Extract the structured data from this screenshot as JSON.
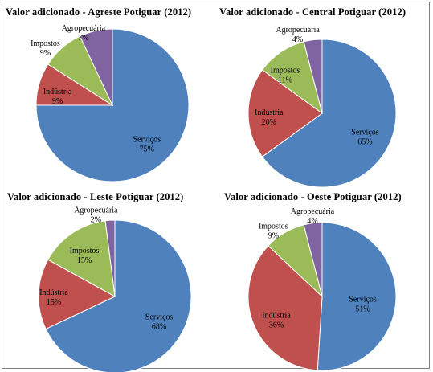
{
  "chart_data": [
    {
      "type": "pie",
      "title": "Valor adicionado  - Agreste Potiguar (2012)",
      "slices": [
        {
          "label": "Serviços",
          "value": 75,
          "pct_label": "75%",
          "color": "#4f81bd"
        },
        {
          "label": "Indústria",
          "value": 9,
          "pct_label": "9%",
          "color": "#c0504d"
        },
        {
          "label": "Impostos",
          "value": 9,
          "pct_label": "9%",
          "color": "#9bbb59"
        },
        {
          "label": "Agropecuária",
          "value": 7,
          "pct_label": "7%",
          "color": "#8064a2"
        }
      ]
    },
    {
      "type": "pie",
      "title": "Valor adicionado  - Central Potiguar (2012)",
      "slices": [
        {
          "label": "Serviços",
          "value": 65,
          "pct_label": "65%",
          "color": "#4f81bd"
        },
        {
          "label": "Indústria",
          "value": 20,
          "pct_label": "20%",
          "color": "#c0504d"
        },
        {
          "label": "Impostos",
          "value": 11,
          "pct_label": "11%",
          "color": "#9bbb59"
        },
        {
          "label": "Agropecuária",
          "value": 4,
          "pct_label": "4%",
          "color": "#8064a2"
        }
      ]
    },
    {
      "type": "pie",
      "title": "Valor adicionado  - Leste Potiguar (2012)",
      "slices": [
        {
          "label": "Serviços",
          "value": 68,
          "pct_label": "68%",
          "color": "#4f81bd"
        },
        {
          "label": "Indústria",
          "value": 15,
          "pct_label": "15%",
          "color": "#c0504d"
        },
        {
          "label": "Impostos",
          "value": 15,
          "pct_label": "15%",
          "color": "#9bbb59"
        },
        {
          "label": "Agropecuária",
          "value": 2,
          "pct_label": "2%",
          "color": "#8064a2"
        }
      ]
    },
    {
      "type": "pie",
      "title": "Valor adicionado  - Oeste Potiguar (2012)",
      "slices": [
        {
          "label": "Serviços",
          "value": 51,
          "pct_label": "51%",
          "color": "#4f81bd"
        },
        {
          "label": "Indústria",
          "value": 36,
          "pct_label": "36%",
          "color": "#c0504d"
        },
        {
          "label": "Impostos",
          "value": 9,
          "pct_label": "9%",
          "color": "#9bbb59"
        },
        {
          "label": "Agropecuária",
          "value": 4,
          "pct_label": "4%",
          "color": "#8064a2"
        }
      ]
    }
  ]
}
